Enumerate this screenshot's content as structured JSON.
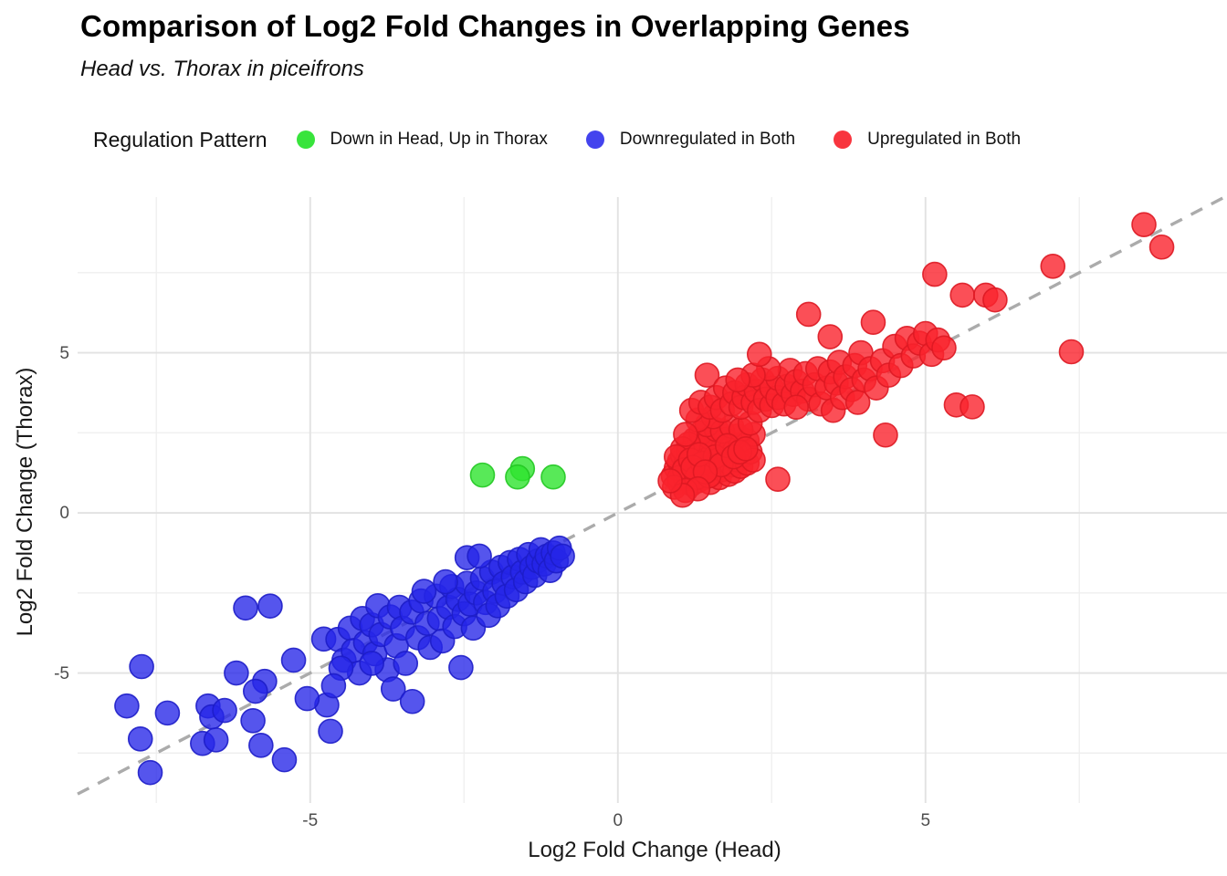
{
  "title": "Comparison of Log2 Fold Changes in Overlapping Genes",
  "subtitle": "Head vs. Thorax in piceifrons",
  "legend": {
    "title": "Regulation Pattern",
    "items": [
      {
        "label": "Down in Head, Up in Thorax",
        "color": "#38e43c"
      },
      {
        "label": "Downregulated in Both",
        "color": "#4343ee"
      },
      {
        "label": "Upregulated in Both",
        "color": "#f8353e"
      }
    ]
  },
  "axes": {
    "x_label": "Log2 Fold Change (Head)",
    "y_label": "Log2 Fold Change (Thorax)",
    "x_ticks": [
      -5,
      0,
      5
    ],
    "y_ticks": [
      5,
      0,
      -5
    ]
  },
  "chart_data": {
    "type": "scatter",
    "title": "Comparison of Log2 Fold Changes in Overlapping Genes",
    "subtitle": "Head vs. Thorax in piceifrons",
    "xlabel": "Log2 Fold Change (Head)",
    "ylabel": "Log2 Fold Change (Thorax)",
    "xlim": [
      -8.78,
      9.9
    ],
    "ylim": [
      -9.06,
      9.86
    ],
    "x_major_gridlines": [
      -5,
      0,
      5
    ],
    "x_minor_gridlines": [
      -7.5,
      -2.5,
      2.5,
      7.5
    ],
    "y_major_gridlines": [
      -5,
      0,
      5
    ],
    "y_minor_gridlines": [
      -7.5,
      -2.5,
      2.5,
      7.5
    ],
    "grid": true,
    "legend_position": "top",
    "reference_line": {
      "type": "identity y=x",
      "style": "dashed",
      "color": "#ababab"
    },
    "point_radius_px": 13,
    "series": [
      {
        "name": "Downregulated in Both",
        "fill": "#2525e8",
        "stroke": "#1d1dc8",
        "opacity": 0.78,
        "points": [
          [
            -7.74,
            -4.8
          ],
          [
            -7.98,
            -6.03
          ],
          [
            -7.32,
            -6.25
          ],
          [
            -7.76,
            -7.06
          ],
          [
            -7.6,
            -8.11
          ],
          [
            -6.05,
            -2.97
          ],
          [
            -5.65,
            -2.91
          ],
          [
            -6.2,
            -5.0
          ],
          [
            -5.74,
            -5.26
          ],
          [
            -5.89,
            -5.57
          ],
          [
            -5.93,
            -6.49
          ],
          [
            -6.66,
            -6.03
          ],
          [
            -6.6,
            -6.37
          ],
          [
            -6.39,
            -6.17
          ],
          [
            -6.75,
            -7.2
          ],
          [
            -6.53,
            -7.09
          ],
          [
            -5.8,
            -7.26
          ],
          [
            -5.42,
            -7.71
          ],
          [
            -5.27,
            -4.6
          ],
          [
            -4.78,
            -3.94
          ],
          [
            -4.73,
            -6.0
          ],
          [
            -4.67,
            -6.82
          ],
          [
            -2.55,
            -4.83
          ],
          [
            -3.75,
            -4.9
          ],
          [
            -3.65,
            -5.5
          ],
          [
            -3.34,
            -5.89
          ],
          [
            -4.55,
            -3.95
          ],
          [
            -4.45,
            -4.6
          ],
          [
            -4.35,
            -3.6
          ],
          [
            -4.3,
            -4.3
          ],
          [
            -4.2,
            -5.0
          ],
          [
            -4.15,
            -3.3
          ],
          [
            -4.1,
            -4.05
          ],
          [
            -4.0,
            -3.5
          ],
          [
            -3.95,
            -4.4
          ],
          [
            -3.9,
            -2.9
          ],
          [
            -3.85,
            -3.8
          ],
          [
            -3.7,
            -3.25
          ],
          [
            -3.6,
            -4.15
          ],
          [
            -3.55,
            -2.95
          ],
          [
            -3.5,
            -3.6
          ],
          [
            -3.45,
            -4.7
          ],
          [
            -3.35,
            -3.1
          ],
          [
            -3.25,
            -3.9
          ],
          [
            -3.2,
            -2.75
          ],
          [
            -3.1,
            -3.45
          ],
          [
            -3.05,
            -4.2
          ],
          [
            -2.95,
            -2.6
          ],
          [
            -2.9,
            -3.3
          ],
          [
            -2.85,
            -4.0
          ],
          [
            -2.75,
            -2.95
          ],
          [
            -2.7,
            -2.3
          ],
          [
            -2.65,
            -3.55
          ],
          [
            -2.6,
            -2.7
          ],
          [
            -2.5,
            -3.15
          ],
          [
            -2.45,
            -2.2
          ],
          [
            -2.4,
            -2.85
          ],
          [
            -2.35,
            -3.6
          ],
          [
            -2.3,
            -2.5
          ],
          [
            -2.2,
            -2.05
          ],
          [
            -2.15,
            -2.8
          ],
          [
            -2.1,
            -3.2
          ],
          [
            -2.05,
            -1.85
          ],
          [
            -2.0,
            -2.45
          ],
          [
            -1.95,
            -2.9
          ],
          [
            -1.9,
            -1.7
          ],
          [
            -1.85,
            -2.2
          ],
          [
            -1.8,
            -2.6
          ],
          [
            -1.75,
            -1.55
          ],
          [
            -1.7,
            -2.0
          ],
          [
            -1.65,
            -2.4
          ],
          [
            -1.6,
            -1.45
          ],
          [
            -1.55,
            -1.85
          ],
          [
            -1.5,
            -2.15
          ],
          [
            -1.45,
            -1.3
          ],
          [
            -1.4,
            -1.7
          ],
          [
            -1.35,
            -1.95
          ],
          [
            -1.3,
            -1.5
          ],
          [
            -1.25,
            -1.15
          ],
          [
            -1.2,
            -1.6
          ],
          [
            -1.15,
            -1.35
          ],
          [
            -1.1,
            -1.8
          ],
          [
            -1.05,
            -1.25
          ],
          [
            -1.0,
            -1.5
          ],
          [
            -0.95,
            -1.1
          ],
          [
            -0.9,
            -1.35
          ],
          [
            -2.45,
            -1.4
          ],
          [
            -2.25,
            -1.35
          ],
          [
            -4.5,
            -4.85
          ],
          [
            -5.05,
            -5.8
          ],
          [
            -4.0,
            -4.7
          ],
          [
            -3.15,
            -2.45
          ],
          [
            -2.8,
            -2.15
          ],
          [
            -4.62,
            -5.4
          ]
        ]
      },
      {
        "name": "Upregulated in Both",
        "fill": "#fa232d",
        "stroke": "#dd1822",
        "opacity": 0.8,
        "points": [
          [
            0.9,
            1.15
          ],
          [
            0.95,
            1.4
          ],
          [
            1.0,
            0.95
          ],
          [
            1.0,
            1.6
          ],
          [
            1.05,
            1.25
          ],
          [
            1.05,
            1.8
          ],
          [
            1.1,
            1.05
          ],
          [
            1.1,
            1.5
          ],
          [
            1.15,
            1.3
          ],
          [
            1.15,
            1.9
          ],
          [
            1.2,
            0.9
          ],
          [
            1.2,
            1.55
          ],
          [
            1.25,
            1.2
          ],
          [
            1.25,
            1.75
          ],
          [
            1.3,
            1.0
          ],
          [
            1.3,
            1.45
          ],
          [
            1.3,
            2.05
          ],
          [
            1.35,
            1.3
          ],
          [
            1.35,
            1.65
          ],
          [
            1.4,
            1.1
          ],
          [
            1.4,
            1.85
          ],
          [
            1.45,
            1.4
          ],
          [
            1.45,
            2.1
          ],
          [
            1.5,
            0.95
          ],
          [
            1.5,
            1.6
          ],
          [
            1.55,
            1.25
          ],
          [
            1.55,
            1.9
          ],
          [
            1.6,
            1.45
          ],
          [
            1.6,
            2.2
          ],
          [
            1.65,
            1.1
          ],
          [
            1.65,
            1.7
          ],
          [
            1.7,
            1.35
          ],
          [
            1.7,
            2.0
          ],
          [
            1.75,
            1.55
          ],
          [
            1.75,
            2.3
          ],
          [
            1.8,
            1.2
          ],
          [
            1.8,
            1.8
          ],
          [
            1.85,
            1.5
          ],
          [
            1.85,
            2.15
          ],
          [
            1.9,
            1.3
          ],
          [
            1.9,
            1.95
          ],
          [
            1.95,
            1.65
          ],
          [
            1.95,
            2.4
          ],
          [
            2.0,
            1.45
          ],
          [
            2.0,
            2.1
          ],
          [
            2.05,
            1.8
          ],
          [
            2.1,
            1.55
          ],
          [
            2.1,
            2.25
          ],
          [
            2.15,
            1.9
          ],
          [
            2.2,
            1.65
          ],
          [
            2.2,
            2.45
          ],
          [
            1.25,
            2.3
          ],
          [
            1.35,
            2.5
          ],
          [
            1.5,
            2.35
          ],
          [
            1.6,
            2.6
          ],
          [
            1.15,
            2.15
          ],
          [
            1.05,
            2.0
          ],
          [
            0.95,
            1.75
          ],
          [
            1.45,
            2.75
          ],
          [
            1.7,
            2.55
          ],
          [
            1.85,
            2.7
          ],
          [
            2.0,
            2.6
          ],
          [
            2.15,
            2.8
          ],
          [
            1.55,
            3.0
          ],
          [
            1.3,
            2.9
          ],
          [
            1.1,
            2.45
          ],
          [
            1.0,
            1.1
          ],
          [
            1.08,
            1.35
          ],
          [
            1.18,
            1.65
          ],
          [
            1.28,
            1.1
          ],
          [
            1.38,
            1.55
          ],
          [
            1.48,
            1.15
          ],
          [
            1.58,
            1.75
          ],
          [
            1.68,
            1.5
          ],
          [
            1.78,
            2.1
          ],
          [
            1.88,
            1.75
          ],
          [
            1.98,
            1.9
          ],
          [
            2.08,
            2.0
          ],
          [
            1.22,
            1.42
          ],
          [
            1.32,
            1.82
          ],
          [
            1.42,
            1.28
          ],
          [
            1.2,
            3.2
          ],
          [
            1.35,
            3.45
          ],
          [
            1.5,
            3.3
          ],
          [
            1.45,
            4.3
          ],
          [
            1.6,
            3.6
          ],
          [
            1.7,
            3.2
          ],
          [
            1.75,
            3.9
          ],
          [
            1.85,
            3.4
          ],
          [
            1.9,
            3.75
          ],
          [
            2.0,
            3.3
          ],
          [
            2.05,
            3.6
          ],
          [
            2.1,
            4.0
          ],
          [
            2.2,
            3.45
          ],
          [
            2.25,
            3.8
          ],
          [
            2.3,
            3.2
          ],
          [
            2.35,
            4.15
          ],
          [
            2.4,
            3.55
          ],
          [
            2.5,
            3.35
          ],
          [
            2.5,
            3.9
          ],
          [
            2.6,
            3.6
          ],
          [
            2.6,
            4.2
          ],
          [
            2.7,
            3.4
          ],
          [
            2.75,
            3.95
          ],
          [
            2.8,
            4.45
          ],
          [
            2.85,
            3.7
          ],
          [
            2.9,
            4.1
          ],
          [
            3.0,
            3.8
          ],
          [
            3.05,
            4.35
          ],
          [
            3.1,
            3.55
          ],
          [
            3.2,
            4.0
          ],
          [
            3.25,
            4.5
          ],
          [
            2.45,
            4.5
          ],
          [
            2.2,
            4.3
          ],
          [
            1.95,
            4.15
          ],
          [
            2.9,
            3.3
          ],
          [
            3.3,
            3.4
          ],
          [
            3.4,
            3.9
          ],
          [
            3.45,
            4.4
          ],
          [
            3.5,
            3.2
          ],
          [
            3.55,
            4.05
          ],
          [
            3.6,
            4.7
          ],
          [
            3.65,
            3.6
          ],
          [
            3.7,
            4.25
          ],
          [
            3.8,
            3.85
          ],
          [
            3.85,
            4.6
          ],
          [
            3.9,
            3.45
          ],
          [
            3.95,
            5.0
          ],
          [
            4.0,
            4.15
          ],
          [
            4.1,
            4.5
          ],
          [
            4.15,
            5.95
          ],
          [
            4.2,
            3.9
          ],
          [
            4.3,
            4.75
          ],
          [
            4.35,
            2.43
          ],
          [
            4.4,
            4.3
          ],
          [
            4.5,
            5.2
          ],
          [
            4.6,
            4.6
          ],
          [
            4.7,
            5.45
          ],
          [
            4.8,
            4.9
          ],
          [
            4.9,
            5.3
          ],
          [
            5.0,
            5.6
          ],
          [
            5.1,
            4.95
          ],
          [
            5.2,
            5.4
          ],
          [
            5.5,
            3.37
          ],
          [
            5.76,
            3.31
          ],
          [
            5.3,
            5.15
          ],
          [
            5.6,
            6.8
          ],
          [
            5.98,
            6.8
          ],
          [
            5.15,
            7.45
          ],
          [
            6.13,
            6.65
          ],
          [
            7.07,
            7.7
          ],
          [
            8.55,
            9.0
          ],
          [
            8.84,
            8.3
          ],
          [
            7.37,
            5.03
          ],
          [
            3.1,
            6.2
          ],
          [
            3.45,
            5.5
          ],
          [
            2.3,
            4.95
          ],
          [
            2.6,
            1.05
          ],
          [
            0.92,
            0.8
          ],
          [
            1.1,
            0.7
          ],
          [
            1.3,
            0.75
          ],
          [
            1.05,
            0.55
          ],
          [
            0.85,
            1.0
          ]
        ]
      },
      {
        "name": "Down in Head, Up in Thorax",
        "fill": "#2ee32e",
        "stroke": "#22c822",
        "opacity": 0.8,
        "points": [
          [
            -2.2,
            1.18
          ],
          [
            -1.55,
            1.38
          ],
          [
            -1.63,
            1.12
          ],
          [
            -1.05,
            1.12
          ]
        ]
      }
    ]
  }
}
